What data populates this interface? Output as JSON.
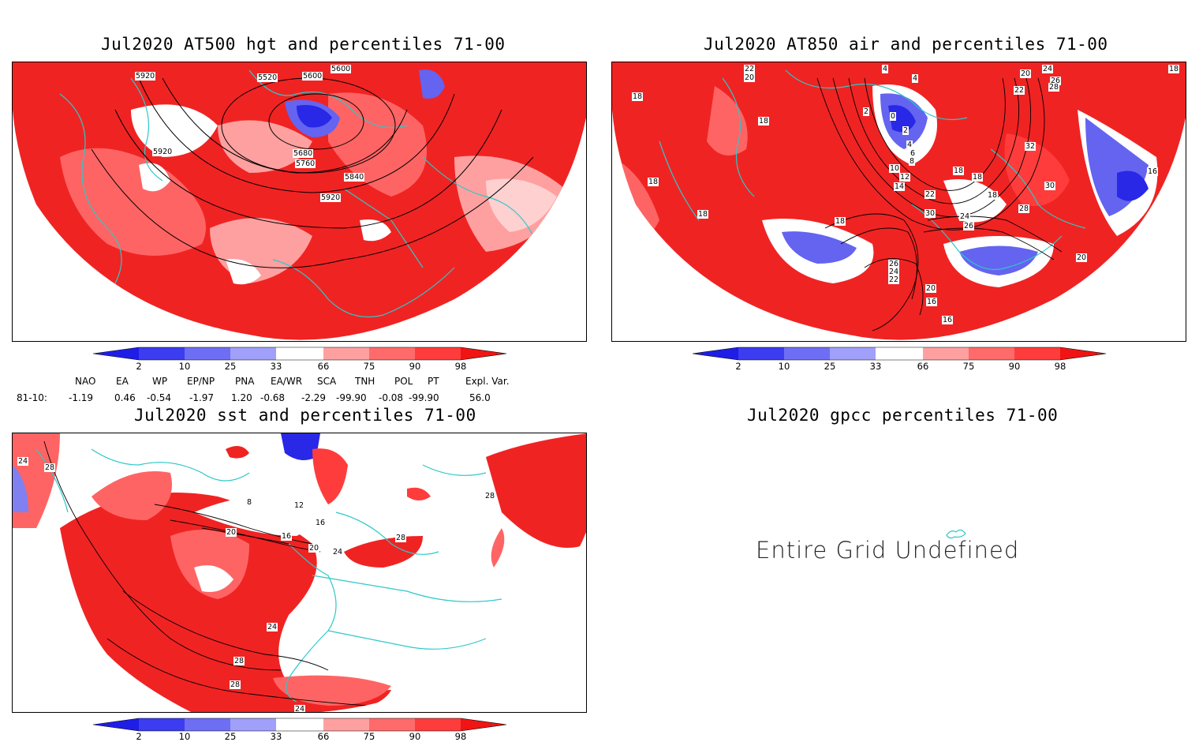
{
  "panels": {
    "hgt": {
      "title": "Jul2020 AT500 hgt and percentiles 71-00",
      "contour_labels": [
        "5920",
        "5520",
        "5600",
        "5600",
        "5920",
        "5680",
        "5760",
        "5840",
        "5920"
      ]
    },
    "air": {
      "title": "Jul2020 AT850 air and percentiles 71-00",
      "contour_labels": [
        "22",
        "20",
        "4",
        "4",
        "20",
        "24",
        "26",
        "28",
        "22",
        "18",
        "18",
        "18",
        "2",
        "0",
        "2",
        "4",
        "6",
        "8",
        "10",
        "12",
        "14",
        "18",
        "18",
        "32",
        "30",
        "16",
        "18",
        "22",
        "30",
        "24",
        "26",
        "28",
        "18",
        "18",
        "26",
        "24",
        "22",
        "20",
        "16",
        "16",
        "20",
        "18"
      ]
    },
    "sst": {
      "title": "Jul2020 sst and percentiles 71-00",
      "contour_labels": [
        "24",
        "28",
        "8",
        "12",
        "16",
        "20",
        "16",
        "20",
        "24",
        "28",
        "24",
        "28",
        "28",
        "28",
        "24"
      ]
    },
    "gpcc": {
      "title": "Jul2020 gpcc percentiles 71-00",
      "message": "Entire Grid Undefined"
    }
  },
  "colorbar": {
    "labels": [
      "2",
      "10",
      "25",
      "33",
      "66",
      "75",
      "90",
      "98"
    ],
    "colors": [
      "#1e1ee6",
      "#3c3cf0",
      "#6e6ef5",
      "#a0a0fa",
      "#ffffff",
      "#ffa0a0",
      "#ff6a6a",
      "#ff3c3c",
      "#f01414"
    ]
  },
  "indices": {
    "header": [
      "NAO",
      "EA",
      "WP",
      "EP/NP",
      "PNA",
      "EA/WR",
      "SCA",
      "TNH",
      "POL",
      "PT",
      "Expl. Var."
    ],
    "row_label": "81-10:",
    "values": [
      "-1.19",
      "0.46",
      "-0.54",
      "-1.97",
      "1.20",
      "-0.68",
      "-2.29",
      "-99.90",
      "-0.08",
      "-99.90",
      "56.0"
    ]
  },
  "colors": {
    "red_high": "#f01e1e",
    "red_mid": "#ff5050",
    "red_low": "#ffa0a0",
    "blue_high": "#2828e6",
    "blue_mid": "#6464f0",
    "coast": "#2ec8c8"
  }
}
